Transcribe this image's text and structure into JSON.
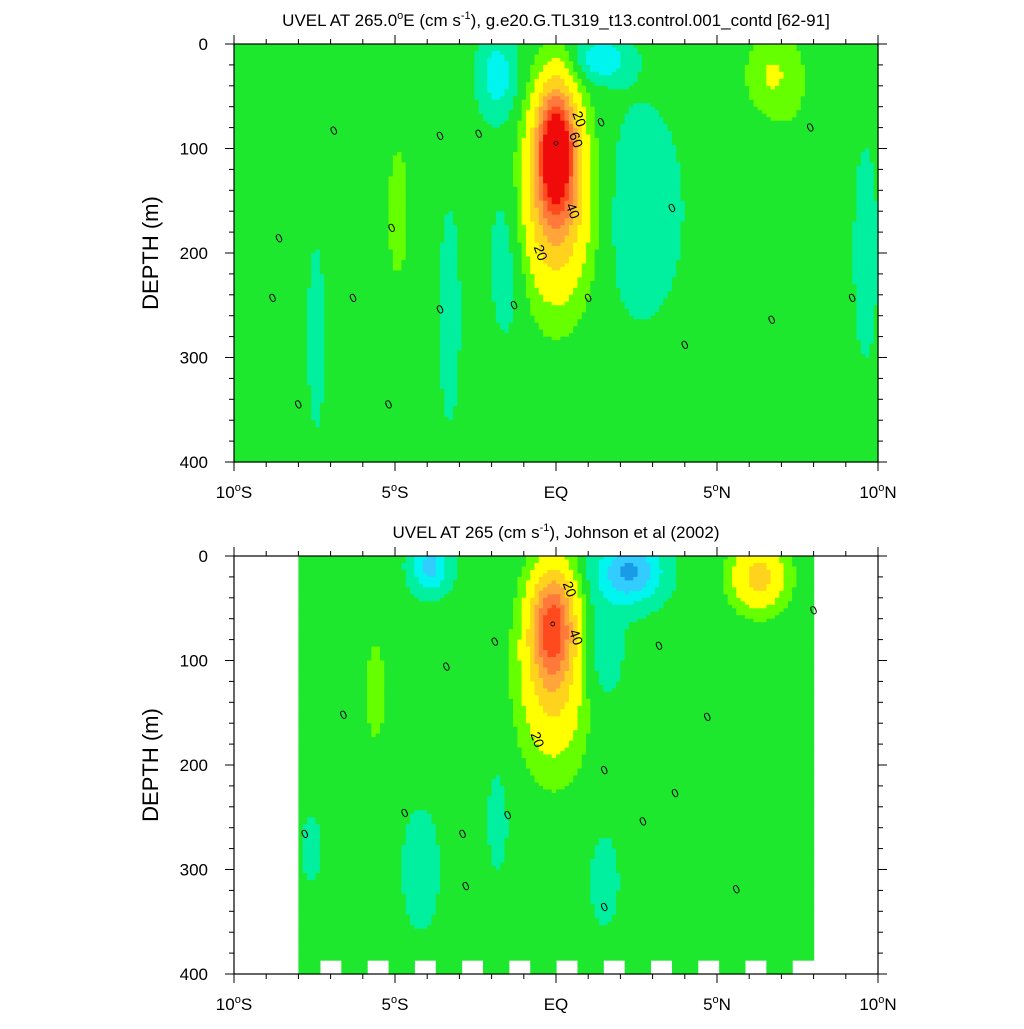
{
  "chart_data": [
    {
      "type": "contour",
      "title": "UVEL AT 265.0°E (cm s-1), g.e20.G.TL319_t13.control.001_contd [62-91]",
      "title_parts": {
        "pre": "UVEL AT 265.0",
        "deg": "o",
        "post_deg": "E (cm s",
        "exp": "-1",
        "post": "), g.e20.G.TL319_t13.control.001_contd [62-91]"
      },
      "ylabel": "DEPTH (m)",
      "xlim": [
        -10,
        10
      ],
      "ylim": [
        400,
        0
      ],
      "x_ticks": [
        {
          "value": -10,
          "num": "10",
          "hemi": "S",
          "deg": true
        },
        {
          "value": -5,
          "num": "5",
          "hemi": "S",
          "deg": true
        },
        {
          "value": 0,
          "num": "EQ",
          "hemi": "",
          "deg": false
        },
        {
          "value": 5,
          "num": "5",
          "hemi": "N",
          "deg": true
        },
        {
          "value": 10,
          "num": "10",
          "hemi": "N",
          "deg": true
        }
      ],
      "y_ticks": [
        0,
        100,
        200,
        300,
        400
      ],
      "contour_interval": 5,
      "core": {
        "lat": 0.0,
        "depth": 95,
        "max_speed": 70
      },
      "contour_labels": [
        {
          "text": "20",
          "lat": 0.7,
          "depth": 72
        },
        {
          "text": "60",
          "lat": 0.6,
          "depth": 92
        },
        {
          "text": "40",
          "lat": 0.5,
          "depth": 160
        },
        {
          "text": "20",
          "lat": -0.5,
          "depth": 200
        },
        {
          "text": "0",
          "lat": -6.9,
          "depth": 83
        },
        {
          "text": "0",
          "lat": -3.6,
          "depth": 88
        },
        {
          "text": "0",
          "lat": -2.4,
          "depth": 86
        },
        {
          "text": "0",
          "lat": 1.4,
          "depth": 75
        },
        {
          "text": "0",
          "lat": 7.9,
          "depth": 80
        },
        {
          "text": "0",
          "lat": 3.6,
          "depth": 157
        },
        {
          "text": "0",
          "lat": -8.6,
          "depth": 186
        },
        {
          "text": "0",
          "lat": -5.1,
          "depth": 176
        },
        {
          "text": "0",
          "lat": -8.8,
          "depth": 243
        },
        {
          "text": "0",
          "lat": -6.3,
          "depth": 243
        },
        {
          "text": "0",
          "lat": -3.6,
          "depth": 254
        },
        {
          "text": "0",
          "lat": -1.3,
          "depth": 250
        },
        {
          "text": "0",
          "lat": 1.0,
          "depth": 243
        },
        {
          "text": "0",
          "lat": 9.2,
          "depth": 243
        },
        {
          "text": "0",
          "lat": 6.7,
          "depth": 264
        },
        {
          "text": "0",
          "lat": 4.0,
          "depth": 288
        },
        {
          "text": "0",
          "lat": -8.0,
          "depth": 345
        },
        {
          "text": "0",
          "lat": -5.2,
          "depth": 345
        }
      ]
    },
    {
      "type": "contour",
      "title": "UVEL AT 265 (cm s-1), Johnson et al (2002)",
      "title_parts": {
        "pre": "UVEL AT 265 (cm s",
        "exp": "-1",
        "post": "), Johnson et al (2002)"
      },
      "ylabel": "DEPTH (m)",
      "xlim": [
        -10,
        10
      ],
      "ylim": [
        400,
        0
      ],
      "data_lat_range": [
        -8,
        8
      ],
      "x_ticks": [
        {
          "value": -10,
          "num": "10",
          "hemi": "S",
          "deg": true
        },
        {
          "value": -5,
          "num": "5",
          "hemi": "S",
          "deg": true
        },
        {
          "value": 0,
          "num": "EQ",
          "hemi": "",
          "deg": false
        },
        {
          "value": 5,
          "num": "5",
          "hemi": "N",
          "deg": true
        },
        {
          "value": 10,
          "num": "10",
          "hemi": "N",
          "deg": true
        }
      ],
      "y_ticks": [
        0,
        100,
        200,
        300,
        400
      ],
      "contour_interval": 5,
      "core": {
        "lat": -0.1,
        "depth": 65,
        "max_speed": 50
      },
      "contour_labels": [
        {
          "text": "20",
          "lat": 0.4,
          "depth": 32
        },
        {
          "text": "40",
          "lat": 0.6,
          "depth": 78
        },
        {
          "text": "20",
          "lat": -0.6,
          "depth": 176
        },
        {
          "text": "0",
          "lat": 8.0,
          "depth": 52
        },
        {
          "text": "0",
          "lat": -1.9,
          "depth": 82
        },
        {
          "text": "0",
          "lat": 3.2,
          "depth": 86
        },
        {
          "text": "0",
          "lat": -3.4,
          "depth": 106
        },
        {
          "text": "0",
          "lat": -6.6,
          "depth": 152
        },
        {
          "text": "0",
          "lat": 4.7,
          "depth": 154
        },
        {
          "text": "0",
          "lat": 1.5,
          "depth": 205
        },
        {
          "text": "0",
          "lat": 3.7,
          "depth": 227
        },
        {
          "text": "0",
          "lat": -4.7,
          "depth": 246
        },
        {
          "text": "0",
          "lat": -1.5,
          "depth": 248
        },
        {
          "text": "0",
          "lat": 2.7,
          "depth": 254
        },
        {
          "text": "0",
          "lat": -7.8,
          "depth": 266
        },
        {
          "text": "0",
          "lat": -2.9,
          "depth": 266
        },
        {
          "text": "0",
          "lat": -2.8,
          "depth": 316
        },
        {
          "text": "0",
          "lat": 5.6,
          "depth": 319
        },
        {
          "text": "0",
          "lat": 1.5,
          "depth": 336
        }
      ]
    }
  ],
  "colors": {
    "negative_strong": "#1a9be8",
    "negative": "#33ccff",
    "negative_weak": "#00f5ee",
    "zero": "#00f0a0",
    "positive_weak": "#1ee82e",
    "positive_5": "#66ff00",
    "positive_10": "#ffff00",
    "positive_20": "#ffd21e",
    "positive_30": "#ffa53a",
    "positive_40": "#ff7a3a",
    "positive_50": "#ff4a1e",
    "positive_60": "#f00a0a",
    "missing": "#ffffff",
    "contour_line": "#000000"
  }
}
